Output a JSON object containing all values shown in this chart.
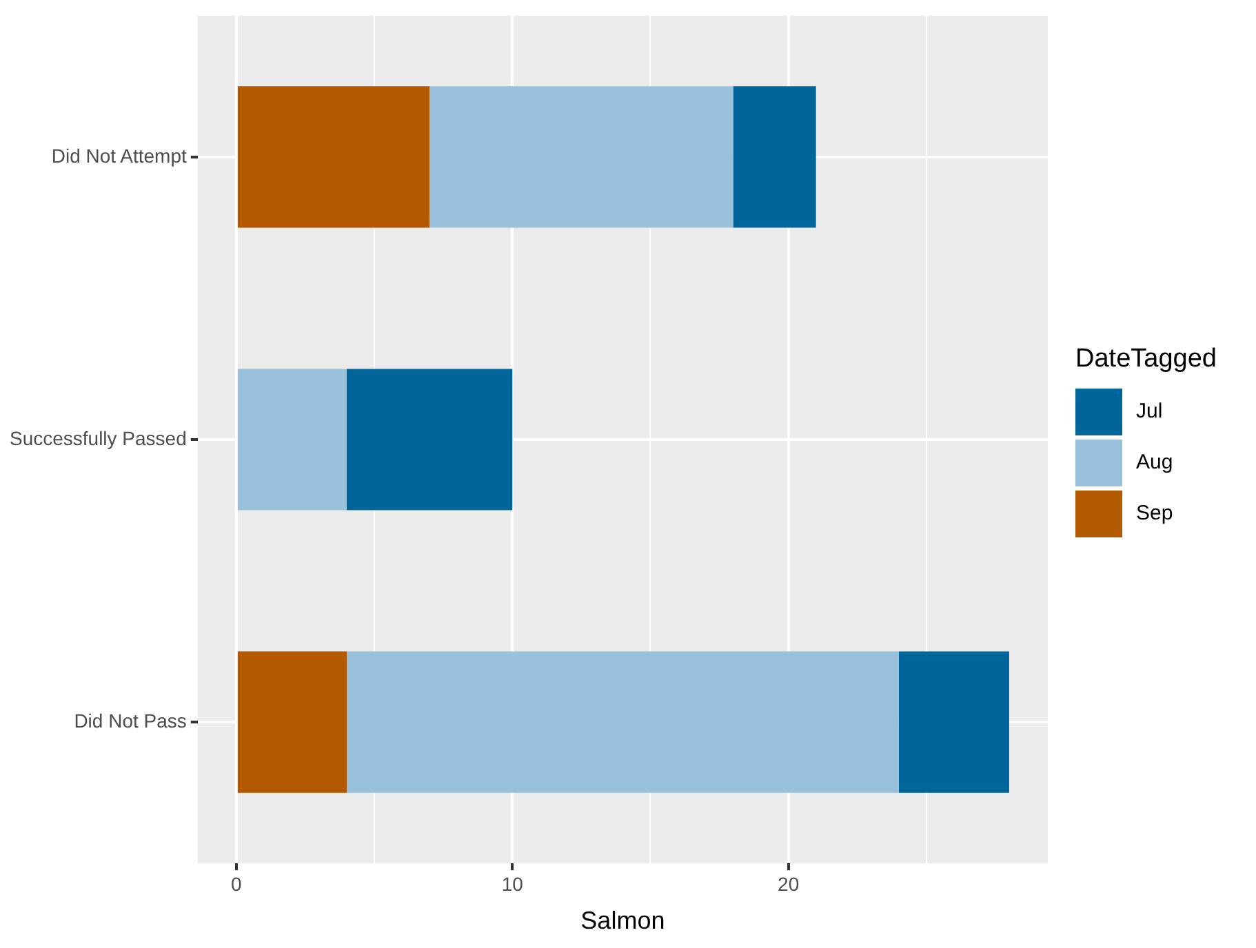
{
  "chart_data": {
    "type": "bar",
    "orientation": "horizontal",
    "stacked": true,
    "categories": [
      "Did Not Attempt",
      "Successfully Passed",
      "Did Not Pass"
    ],
    "series": [
      {
        "name": "Sep",
        "color": "#b35900",
        "values": [
          7,
          0,
          4
        ]
      },
      {
        "name": "Aug",
        "color": "#99c1db",
        "values": [
          11,
          4,
          20
        ]
      },
      {
        "name": "Jul",
        "color": "#006699",
        "values": [
          3,
          6,
          4
        ]
      }
    ],
    "xlabel": "Salmon",
    "legend_title": "DateTagged",
    "xlim": [
      -1.4,
      29.4
    ],
    "xticks": [
      0,
      {
        "value": 5,
        "label": null
      },
      10,
      {
        "value": 15,
        "label": null
      },
      20,
      {
        "value": 25,
        "label": null
      }
    ],
    "grid": true,
    "legend": "right"
  }
}
